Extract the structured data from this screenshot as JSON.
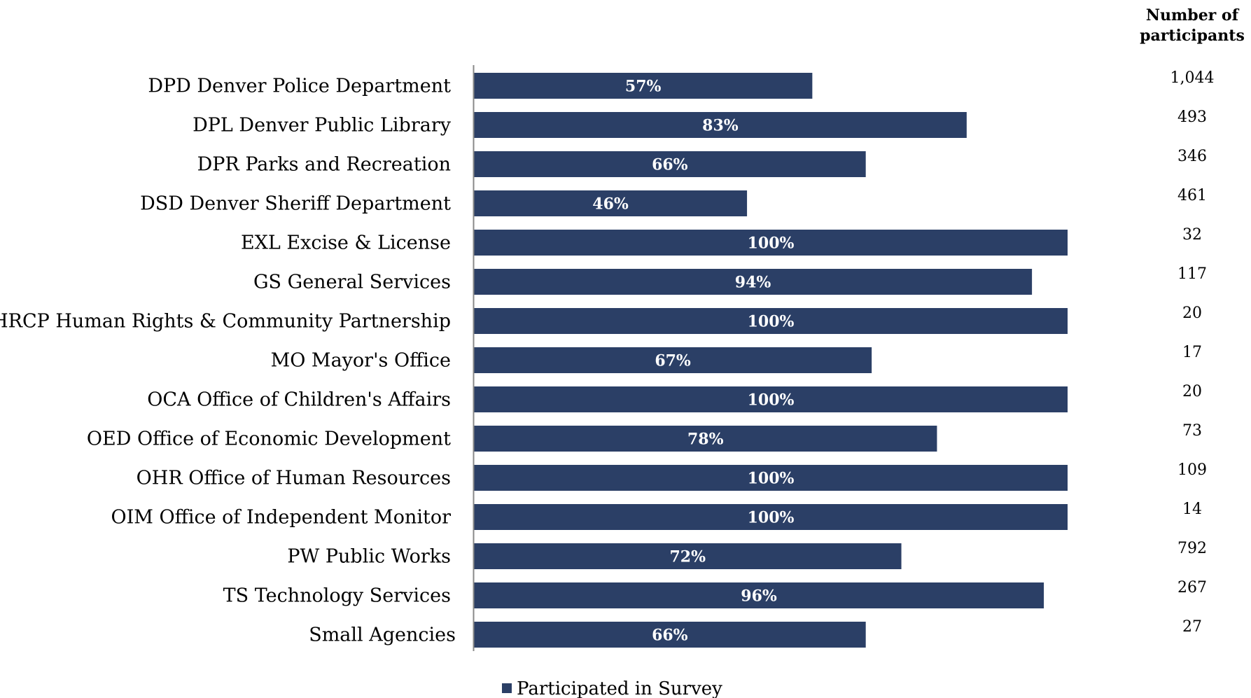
{
  "chart_data": {
    "type": "bar",
    "orientation": "horizontal",
    "categories": [
      "DPD Denver Police Department",
      "DPL Denver Public Library",
      "DPR Parks and Recreation",
      "DSD Denver Sheriff Department",
      "EXL Excise & License",
      "GS General Services",
      "HRCP Human Rights & Community Partnership",
      "MO Mayor's Office",
      "OCA Office of Children's Affairs",
      "OED Office of Economic Development",
      "OHR Office of Human Resources",
      "OIM Office of Independent Monitor",
      "PW Public Works",
      "TS Technology Services",
      "Small Agencies"
    ],
    "series": [
      {
        "name": "Participated in Survey",
        "values": [
          57,
          83,
          66,
          46,
          100,
          94,
          100,
          67,
          100,
          78,
          100,
          100,
          72,
          96,
          66
        ],
        "data_labels": [
          "57%",
          "83%",
          "66%",
          "46%",
          "100%",
          "94%",
          "100%",
          "67%",
          "100%",
          "78%",
          "100%",
          "100%",
          "72%",
          "96%",
          "66%"
        ],
        "color": "#2B3F66"
      }
    ],
    "participants_header": [
      "Number of",
      "participants"
    ],
    "participants": [
      "1,044",
      "493",
      "346",
      "461",
      "32",
      "117",
      "20",
      "17",
      "20",
      "73",
      "109",
      "14",
      "792",
      "267",
      "27"
    ],
    "xlim": [
      0,
      100
    ],
    "grid": false,
    "legend_position": "bottom",
    "axis_color": "#888888"
  }
}
